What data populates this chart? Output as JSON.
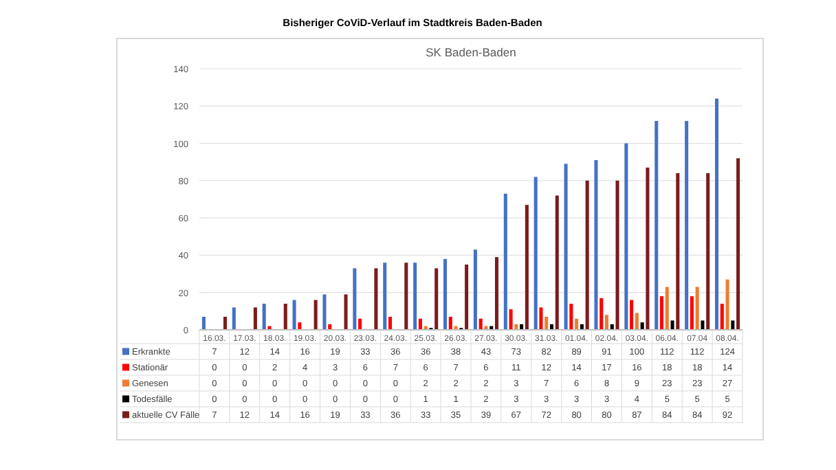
{
  "chart_data": {
    "type": "bar",
    "title": "Bisheriger CoViD-Verlauf im Stadtkreis Baden-Baden",
    "subtitle": "SK Baden-Baden",
    "categories": [
      "16.03.",
      "17.03.",
      "18.03.",
      "19.03.",
      "20.03.",
      "23.03.",
      "24.03.",
      "25.03.",
      "26.03.",
      "27.03.",
      "30.03.",
      "31.03.",
      "01.04.",
      "02.04.",
      "03.04.",
      "06.04.",
      "07.04",
      "08.04."
    ],
    "series": [
      {
        "name": "Erkrankte",
        "color": "#4472c4",
        "values": [
          7,
          12,
          14,
          16,
          19,
          33,
          36,
          36,
          38,
          43,
          73,
          82,
          89,
          91,
          100,
          112,
          112,
          124
        ]
      },
      {
        "name": "Stationär",
        "color": "#ff0000",
        "values": [
          0,
          0,
          2,
          4,
          3,
          6,
          7,
          6,
          7,
          6,
          11,
          12,
          14,
          17,
          16,
          18,
          18,
          14
        ]
      },
      {
        "name": "Genesen",
        "color": "#ed7d31",
        "values": [
          0,
          0,
          0,
          0,
          0,
          0,
          0,
          2,
          2,
          2,
          3,
          7,
          6,
          8,
          9,
          23,
          23,
          27
        ]
      },
      {
        "name": "Todesfälle",
        "color": "#000000",
        "values": [
          0,
          0,
          0,
          0,
          0,
          0,
          0,
          1,
          1,
          2,
          3,
          3,
          3,
          3,
          4,
          5,
          5,
          5
        ]
      },
      {
        "name": "aktuelle CV Fälle",
        "color": "#7b1c1c",
        "values": [
          7,
          12,
          14,
          16,
          19,
          33,
          36,
          33,
          35,
          39,
          67,
          72,
          80,
          80,
          87,
          84,
          84,
          92
        ]
      }
    ],
    "ylim": [
      0,
      140
    ],
    "yticks": [
      0,
      20,
      40,
      60,
      80,
      100,
      120,
      140
    ],
    "grid": "y",
    "legend": "bottom",
    "data_labels": true
  }
}
